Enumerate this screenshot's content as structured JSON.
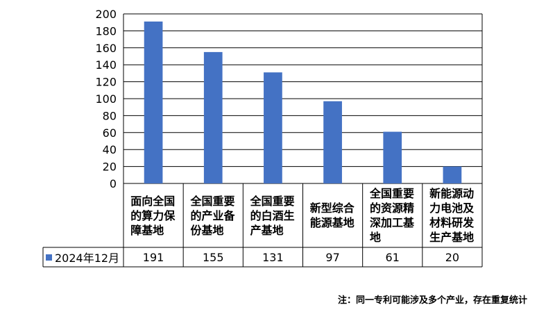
{
  "chart_data": {
    "type": "bar",
    "categories": [
      "面向全国的算力保障基地",
      "全国重要的产业备份基地",
      "全国重要的白酒生产基地",
      "新型综合能源基地",
      "全国重要的资源精深加工基地",
      "新能源动力电池及材料研发生产基地"
    ],
    "series": [
      {
        "name": "2024年12月",
        "values": [
          191,
          155,
          131,
          97,
          61,
          20
        ],
        "color": "#4472C4"
      }
    ],
    "ylim": [
      0,
      200
    ],
    "yticks": [
      "0",
      "20",
      "40",
      "60",
      "80",
      "100",
      "120",
      "140",
      "160",
      "180",
      "200"
    ],
    "grid": true,
    "legend": "data-table",
    "note": "注：同一专利可能涉及多个产业，存在重复统计"
  }
}
